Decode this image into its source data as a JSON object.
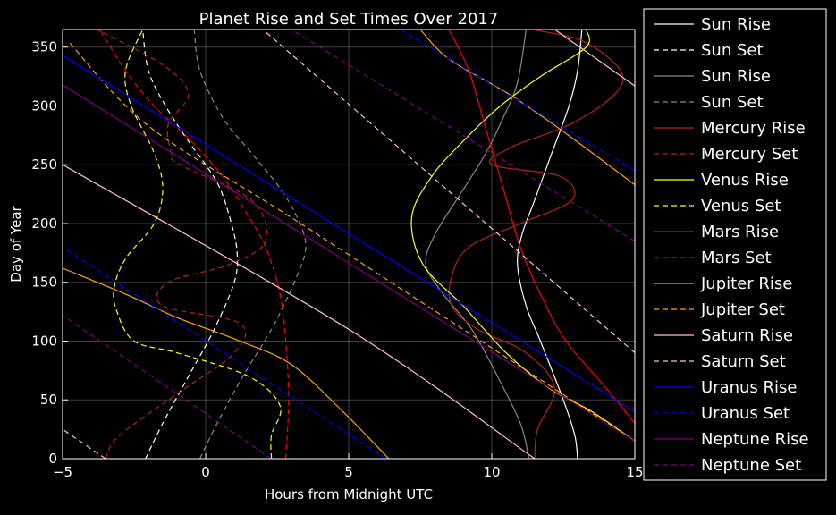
{
  "chart_data": {
    "type": "line",
    "title": "Planet Rise and Set Times Over 2017",
    "xlabel": "Hours from Midnight UTC",
    "ylabel": "Day of Year",
    "xlim": [
      -5,
      15
    ],
    "ylim": [
      0,
      365
    ],
    "xticks": [
      -5,
      0,
      5,
      10,
      15
    ],
    "yticks": [
      0,
      50,
      100,
      150,
      200,
      250,
      300,
      350
    ],
    "grid": true,
    "legend_position": "outside-right",
    "series": [
      {
        "name": "Sun Rise",
        "color": "#ffffff",
        "dash": "solid",
        "points": [
          [
            13.0,
            0
          ],
          [
            12.9,
            20
          ],
          [
            12.5,
            50
          ],
          [
            11.7,
            100
          ],
          [
            11.2,
            130
          ],
          [
            10.9,
            165
          ],
          [
            11.05,
            190
          ],
          [
            11.5,
            220
          ],
          [
            12.1,
            260
          ],
          [
            12.7,
            300
          ],
          [
            13.0,
            330
          ],
          [
            13.15,
            365
          ]
        ]
      },
      {
        "name": "Sun Set",
        "color": "#ffffff",
        "dash": "dashed",
        "points": [
          [
            -2.1,
            0
          ],
          [
            -1.5,
            30
          ],
          [
            -0.6,
            70
          ],
          [
            0.3,
            110
          ],
          [
            1.0,
            150
          ],
          [
            1.1,
            175
          ],
          [
            0.9,
            200
          ],
          [
            0.5,
            230
          ],
          [
            0.0,
            250
          ],
          [
            -0.6,
            270
          ],
          [
            -1.4,
            300
          ],
          [
            -2.0,
            330
          ],
          [
            -2.2,
            365
          ]
        ]
      },
      {
        "name": "Sun Rise",
        "color": "#888888",
        "dash": "solid",
        "points": [
          [
            11.3,
            0
          ],
          [
            11.0,
            30
          ],
          [
            10.2,
            70
          ],
          [
            9.3,
            110
          ],
          [
            8.3,
            140
          ],
          [
            7.7,
            165
          ],
          [
            8.0,
            190
          ],
          [
            8.9,
            225
          ],
          [
            9.8,
            260
          ],
          [
            10.4,
            290
          ],
          [
            10.9,
            320
          ],
          [
            11.2,
            365
          ]
        ]
      },
      {
        "name": "Sun Set",
        "color": "#888888",
        "dash": "dashed",
        "points": [
          [
            -0.2,
            0
          ],
          [
            0.4,
            30
          ],
          [
            1.3,
            70
          ],
          [
            2.3,
            110
          ],
          [
            3.1,
            150
          ],
          [
            3.5,
            180
          ],
          [
            3.2,
            205
          ],
          [
            2.6,
            230
          ],
          [
            1.6,
            260
          ],
          [
            0.6,
            290
          ],
          [
            -0.2,
            330
          ],
          [
            -0.4,
            365
          ]
        ]
      },
      {
        "name": "Mercury Rise",
        "color": "#b22222",
        "dash": "solid",
        "points": [
          [
            11.5,
            0
          ],
          [
            11.6,
            25
          ],
          [
            12.2,
            60
          ],
          [
            11.2,
            90
          ],
          [
            9.5,
            110
          ],
          [
            8.6,
            130
          ],
          [
            8.6,
            155
          ],
          [
            9.2,
            180
          ],
          [
            11.0,
            200
          ],
          [
            12.8,
            220
          ],
          [
            12.4,
            240
          ],
          [
            10.0,
            250
          ],
          [
            10.7,
            265
          ],
          [
            12.8,
            285
          ],
          [
            14.3,
            310
          ],
          [
            14.5,
            330
          ],
          [
            13.2,
            355
          ],
          [
            11.4,
            365
          ]
        ]
      },
      {
        "name": "Mercury Set",
        "color": "#b22222",
        "dash": "dashed",
        "points": [
          [
            -3.5,
            0
          ],
          [
            -3.0,
            20
          ],
          [
            -0.7,
            60
          ],
          [
            1.0,
            90
          ],
          [
            1.2,
            115
          ],
          [
            -1.5,
            130
          ],
          [
            -1.3,
            150
          ],
          [
            0.8,
            165
          ],
          [
            2.1,
            185
          ],
          [
            1.6,
            220
          ],
          [
            -0.9,
            250
          ],
          [
            -1.2,
            260
          ],
          [
            -1.3,
            285
          ],
          [
            -0.6,
            310
          ],
          [
            -1.5,
            335
          ],
          [
            -3.8,
            365
          ]
        ]
      },
      {
        "name": "Venus Rise",
        "color": "#ffff00",
        "dash": "solid",
        "points": [
          [
            15.0,
            15
          ],
          [
            13.5,
            40
          ],
          [
            12.0,
            60
          ],
          [
            10.5,
            90
          ],
          [
            9.0,
            130
          ],
          [
            7.6,
            165
          ],
          [
            7.2,
            205
          ],
          [
            7.9,
            240
          ],
          [
            9.0,
            270
          ],
          [
            10.3,
            300
          ],
          [
            11.7,
            325
          ],
          [
            13.3,
            350
          ],
          [
            13.3,
            365
          ]
        ]
      },
      {
        "name": "Venus Set",
        "color": "#ffff00",
        "dash": "dashed",
        "points": [
          [
            2.3,
            0
          ],
          [
            2.3,
            20
          ],
          [
            2.6,
            45
          ],
          [
            1.5,
            70
          ],
          [
            -1.0,
            90
          ],
          [
            -2.5,
            100
          ],
          [
            -3.1,
            125
          ],
          [
            -3.2,
            145
          ],
          [
            -2.8,
            170
          ],
          [
            -1.8,
            200
          ],
          [
            -1.5,
            230
          ],
          [
            -1.8,
            260
          ],
          [
            -2.6,
            300
          ],
          [
            -2.8,
            330
          ],
          [
            -2.2,
            365
          ]
        ]
      },
      {
        "name": "Mars Rise",
        "color": "#ff0000",
        "dash": "solid",
        "points": [
          [
            15.0,
            30
          ],
          [
            14.0,
            60
          ],
          [
            12.6,
            100
          ],
          [
            11.7,
            140
          ],
          [
            11.0,
            180
          ],
          [
            10.4,
            230
          ],
          [
            9.8,
            280
          ],
          [
            9.2,
            330
          ],
          [
            8.5,
            365
          ]
        ]
      },
      {
        "name": "Mars Set",
        "color": "#ff0000",
        "dash": "dashed",
        "points": [
          [
            2.8,
            0
          ],
          [
            2.9,
            50
          ],
          [
            2.8,
            100
          ],
          [
            2.6,
            140
          ],
          [
            2.1,
            180
          ],
          [
            1.4,
            210
          ],
          [
            0.6,
            240
          ],
          [
            -0.5,
            270
          ],
          [
            -1.8,
            300
          ],
          [
            -2.8,
            330
          ],
          [
            -3.7,
            365
          ]
        ]
      },
      {
        "name": "Jupiter Rise",
        "color": "#ffa500",
        "dash": "solid",
        "points": [
          [
            6.4,
            0
          ],
          [
            4.8,
            40
          ],
          [
            3.0,
            80
          ],
          [
            1.2,
            100
          ],
          [
            -1.0,
            120
          ],
          [
            -2.8,
            140
          ],
          [
            -5.0,
            162
          ]
        ]
      },
      {
        "name": "Jupiter Rise",
        "color": "#ffa500",
        "dash": "solid",
        "points": [
          [
            15.0,
            233
          ],
          [
            12.4,
            280
          ],
          [
            10.6,
            310
          ],
          [
            8.5,
            340
          ],
          [
            7.5,
            365
          ]
        ]
      },
      {
        "name": "Jupiter Set",
        "color": "#ffa500",
        "dash": "dashed",
        "points": [
          [
            15.0,
            15
          ],
          [
            9.0,
            110
          ],
          [
            3.0,
            205
          ],
          [
            -2.0,
            283
          ],
          [
            -4.8,
            355
          ]
        ]
      },
      {
        "name": "Saturn Rise",
        "color": "#ffc0cb",
        "dash": "solid",
        "points": [
          [
            11.5,
            0
          ],
          [
            5.0,
            110
          ],
          [
            -5.0,
            250
          ]
        ]
      },
      {
        "name": "Saturn Rise",
        "color": "#ffc0cb",
        "dash": "solid",
        "points": [
          [
            15.0,
            317
          ],
          [
            12.2,
            365
          ]
        ]
      },
      {
        "name": "Saturn Set",
        "color": "#ffc0cb",
        "dash": "dashed",
        "points": [
          [
            15.0,
            90
          ],
          [
            2.0,
            365
          ]
        ]
      },
      {
        "name": "Saturn Set",
        "color": "#ffc0cb",
        "dash": "dashed",
        "points": [
          [
            -3.5,
            0
          ],
          [
            -5.0,
            25
          ]
        ]
      },
      {
        "name": "Uranus Rise",
        "color": "#0000ff",
        "dash": "solid",
        "points": [
          [
            15.0,
            40
          ],
          [
            -5.0,
            343
          ]
        ]
      },
      {
        "name": "Uranus Set",
        "color": "#0000ff",
        "dash": "dashed",
        "points": [
          [
            6.3,
            0
          ],
          [
            -5.0,
            180
          ]
        ]
      },
      {
        "name": "Uranus Set",
        "color": "#0000ff",
        "dash": "dashed",
        "points": [
          [
            15.0,
            245
          ],
          [
            6.8,
            365
          ]
        ]
      },
      {
        "name": "Neptune Rise",
        "color": "#800080",
        "dash": "solid",
        "points": [
          [
            15.0,
            15
          ],
          [
            -5.0,
            318
          ]
        ]
      },
      {
        "name": "Neptune Set",
        "color": "#800080",
        "dash": "dashed",
        "points": [
          [
            2.3,
            0
          ],
          [
            -5.0,
            122
          ]
        ]
      },
      {
        "name": "Neptune Set",
        "color": "#800080",
        "dash": "dashed",
        "points": [
          [
            15.0,
            185
          ],
          [
            3.0,
            365
          ]
        ]
      }
    ],
    "legend": [
      {
        "label": "Sun Rise",
        "color": "#ffffff",
        "dash": "solid"
      },
      {
        "label": "Sun Set",
        "color": "#ffffff",
        "dash": "dashed"
      },
      {
        "label": "Sun Rise",
        "color": "#888888",
        "dash": "solid"
      },
      {
        "label": "Sun Set",
        "color": "#888888",
        "dash": "dashed"
      },
      {
        "label": "Mercury Rise",
        "color": "#b22222",
        "dash": "solid"
      },
      {
        "label": "Mercury Set",
        "color": "#b22222",
        "dash": "dashed"
      },
      {
        "label": "Venus Rise",
        "color": "#ffff00",
        "dash": "solid"
      },
      {
        "label": "Venus Set",
        "color": "#ffff00",
        "dash": "dashed"
      },
      {
        "label": "Mars Rise",
        "color": "#ff0000",
        "dash": "solid"
      },
      {
        "label": "Mars Set",
        "color": "#ff0000",
        "dash": "dashed"
      },
      {
        "label": "Jupiter Rise",
        "color": "#ffa500",
        "dash": "solid"
      },
      {
        "label": "Jupiter Set",
        "color": "#ffa500",
        "dash": "dashed"
      },
      {
        "label": "Saturn Rise",
        "color": "#ffc0cb",
        "dash": "solid"
      },
      {
        "label": "Saturn Set",
        "color": "#ffc0cb",
        "dash": "dashed"
      },
      {
        "label": "Uranus Rise",
        "color": "#0000ff",
        "dash": "solid"
      },
      {
        "label": "Uranus Set",
        "color": "#0000ff",
        "dash": "dashed"
      },
      {
        "label": "Neptune Rise",
        "color": "#800080",
        "dash": "solid"
      },
      {
        "label": "Neptune Set",
        "color": "#800080",
        "dash": "dashed"
      }
    ]
  }
}
